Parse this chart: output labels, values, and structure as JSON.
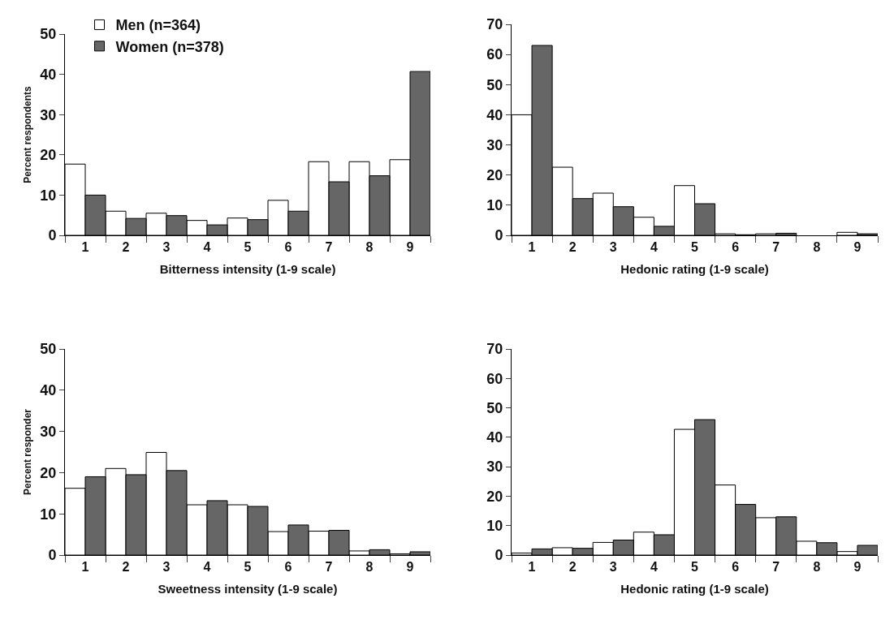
{
  "chart_data": [
    {
      "type": "bar",
      "xlabel": "Bitterness intensity (1-9 scale)",
      "ylabel": "Percent respondents",
      "categories": [
        "1",
        "2",
        "3",
        "4",
        "5",
        "6",
        "7",
        "8",
        "9"
      ],
      "ylim": [
        0,
        50
      ],
      "yticks": [
        0,
        10,
        20,
        30,
        40,
        50
      ],
      "grid": false,
      "legend": "top left",
      "series": [
        {
          "name": "Men (n=364)",
          "color": "#ffffff",
          "values": [
            17.7,
            6,
            5.5,
            3.7,
            4.3,
            8.7,
            18.3,
            18.3,
            18.8
          ]
        },
        {
          "name": "Women (n=378)",
          "color": "#666666",
          "values": [
            10,
            4.2,
            4.9,
            2.6,
            3.9,
            6,
            13.3,
            14.8,
            40.7
          ]
        }
      ]
    },
    {
      "type": "bar",
      "xlabel": "Hedonic rating (1-9 scale)",
      "categories": [
        "1",
        "2",
        "3",
        "4",
        "5",
        "6",
        "7",
        "8",
        "9"
      ],
      "ylim": [
        0,
        70
      ],
      "yticks": [
        0,
        10,
        20,
        30,
        40,
        50,
        60,
        70
      ],
      "grid": false,
      "series": [
        {
          "color": "#ffffff",
          "values": [
            40,
            22.6,
            14,
            6,
            16.5,
            0.5,
            0.5,
            null,
            1
          ]
        },
        {
          "color": "#666666",
          "values": [
            63,
            12.2,
            9.5,
            3,
            10.5,
            0.2,
            0.7,
            null,
            0.5
          ]
        }
      ]
    },
    {
      "type": "bar",
      "xlabel": "Sweetness intensity (1-9 scale)",
      "ylabel": "Percent responder",
      "categories": [
        "1",
        "2",
        "3",
        "4",
        "5",
        "6",
        "7",
        "8",
        "9"
      ],
      "ylim": [
        0,
        50
      ],
      "yticks": [
        0,
        10,
        20,
        30,
        40,
        50
      ],
      "grid": false,
      "series": [
        {
          "color": "#ffffff",
          "values": [
            16.2,
            21,
            24.9,
            12.2,
            12.2,
            5.7,
            5.8,
            1,
            0.3
          ]
        },
        {
          "color": "#666666",
          "values": [
            19,
            19.5,
            20.5,
            13.2,
            11.8,
            7.3,
            6,
            1.3,
            0.8
          ]
        }
      ]
    },
    {
      "type": "bar",
      "xlabel": "Hedonic rating (1-9 scale)",
      "categories": [
        "1",
        "2",
        "3",
        "4",
        "5",
        "6",
        "7",
        "8",
        "9"
      ],
      "ylim": [
        0,
        70
      ],
      "yticks": [
        0,
        10,
        20,
        30,
        40,
        50,
        60,
        70
      ],
      "grid": false,
      "series": [
        {
          "color": "#ffffff",
          "values": [
            0.7,
            2.5,
            4.3,
            7.8,
            42.7,
            23.8,
            12.7,
            4.7,
            1.2
          ]
        },
        {
          "color": "#666666",
          "values": [
            2.1,
            2.3,
            5.1,
            6.9,
            46,
            17.2,
            13,
            4.2,
            3.3
          ]
        }
      ]
    }
  ]
}
